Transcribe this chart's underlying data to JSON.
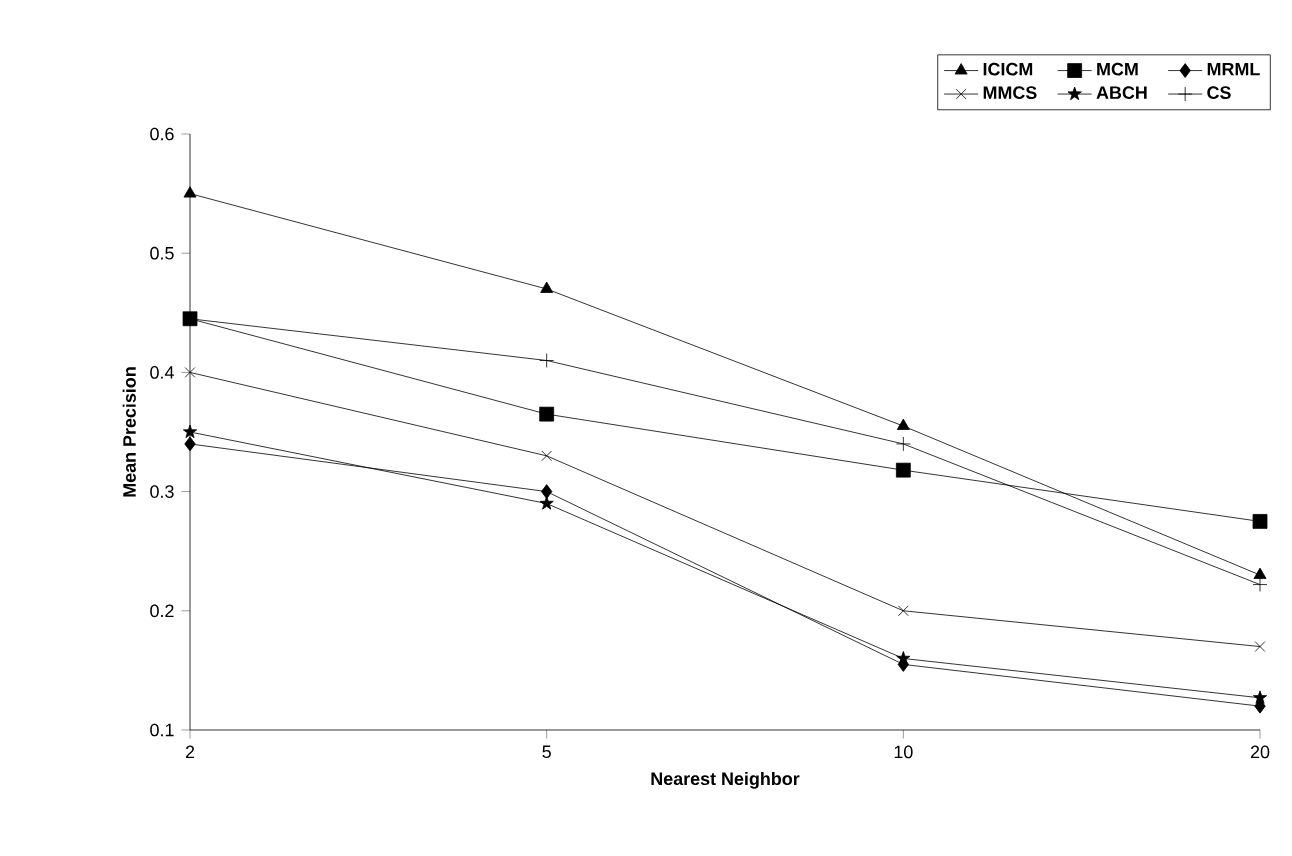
{
  "chart_data": {
    "type": "line",
    "xlabel": "Nearest Neighbor",
    "ylabel": "Mean Precision",
    "categories": [
      "2",
      "5",
      "10",
      "20"
    ],
    "series": [
      {
        "name": "ICICM",
        "color": "#000000",
        "marker": "triangle",
        "values": [
          0.55,
          0.47,
          0.355,
          0.23
        ]
      },
      {
        "name": "MCM",
        "color": "#000000",
        "marker": "square",
        "values": [
          0.445,
          0.365,
          0.318,
          0.275
        ]
      },
      {
        "name": "MRML",
        "color": "#000000",
        "marker": "diamond",
        "values": [
          0.34,
          0.3,
          0.155,
          0.12
        ]
      },
      {
        "name": "MMCS",
        "color": "#000000",
        "marker": "cross",
        "values": [
          0.4,
          0.33,
          0.2,
          0.17
        ]
      },
      {
        "name": "ABCH",
        "color": "#000000",
        "marker": "star",
        "values": [
          0.35,
          0.29,
          0.16,
          0.127
        ]
      },
      {
        "name": "CS",
        "color": "#000000",
        "marker": "plus",
        "values": [
          0.445,
          0.41,
          0.34,
          0.222
        ]
      }
    ],
    "ylim": [
      0.1,
      0.6
    ],
    "yticks": [
      0.1,
      0.2,
      0.3,
      0.4,
      0.5,
      0.6
    ],
    "grid": false,
    "legend": "top right",
    "line_style": "solid"
  }
}
